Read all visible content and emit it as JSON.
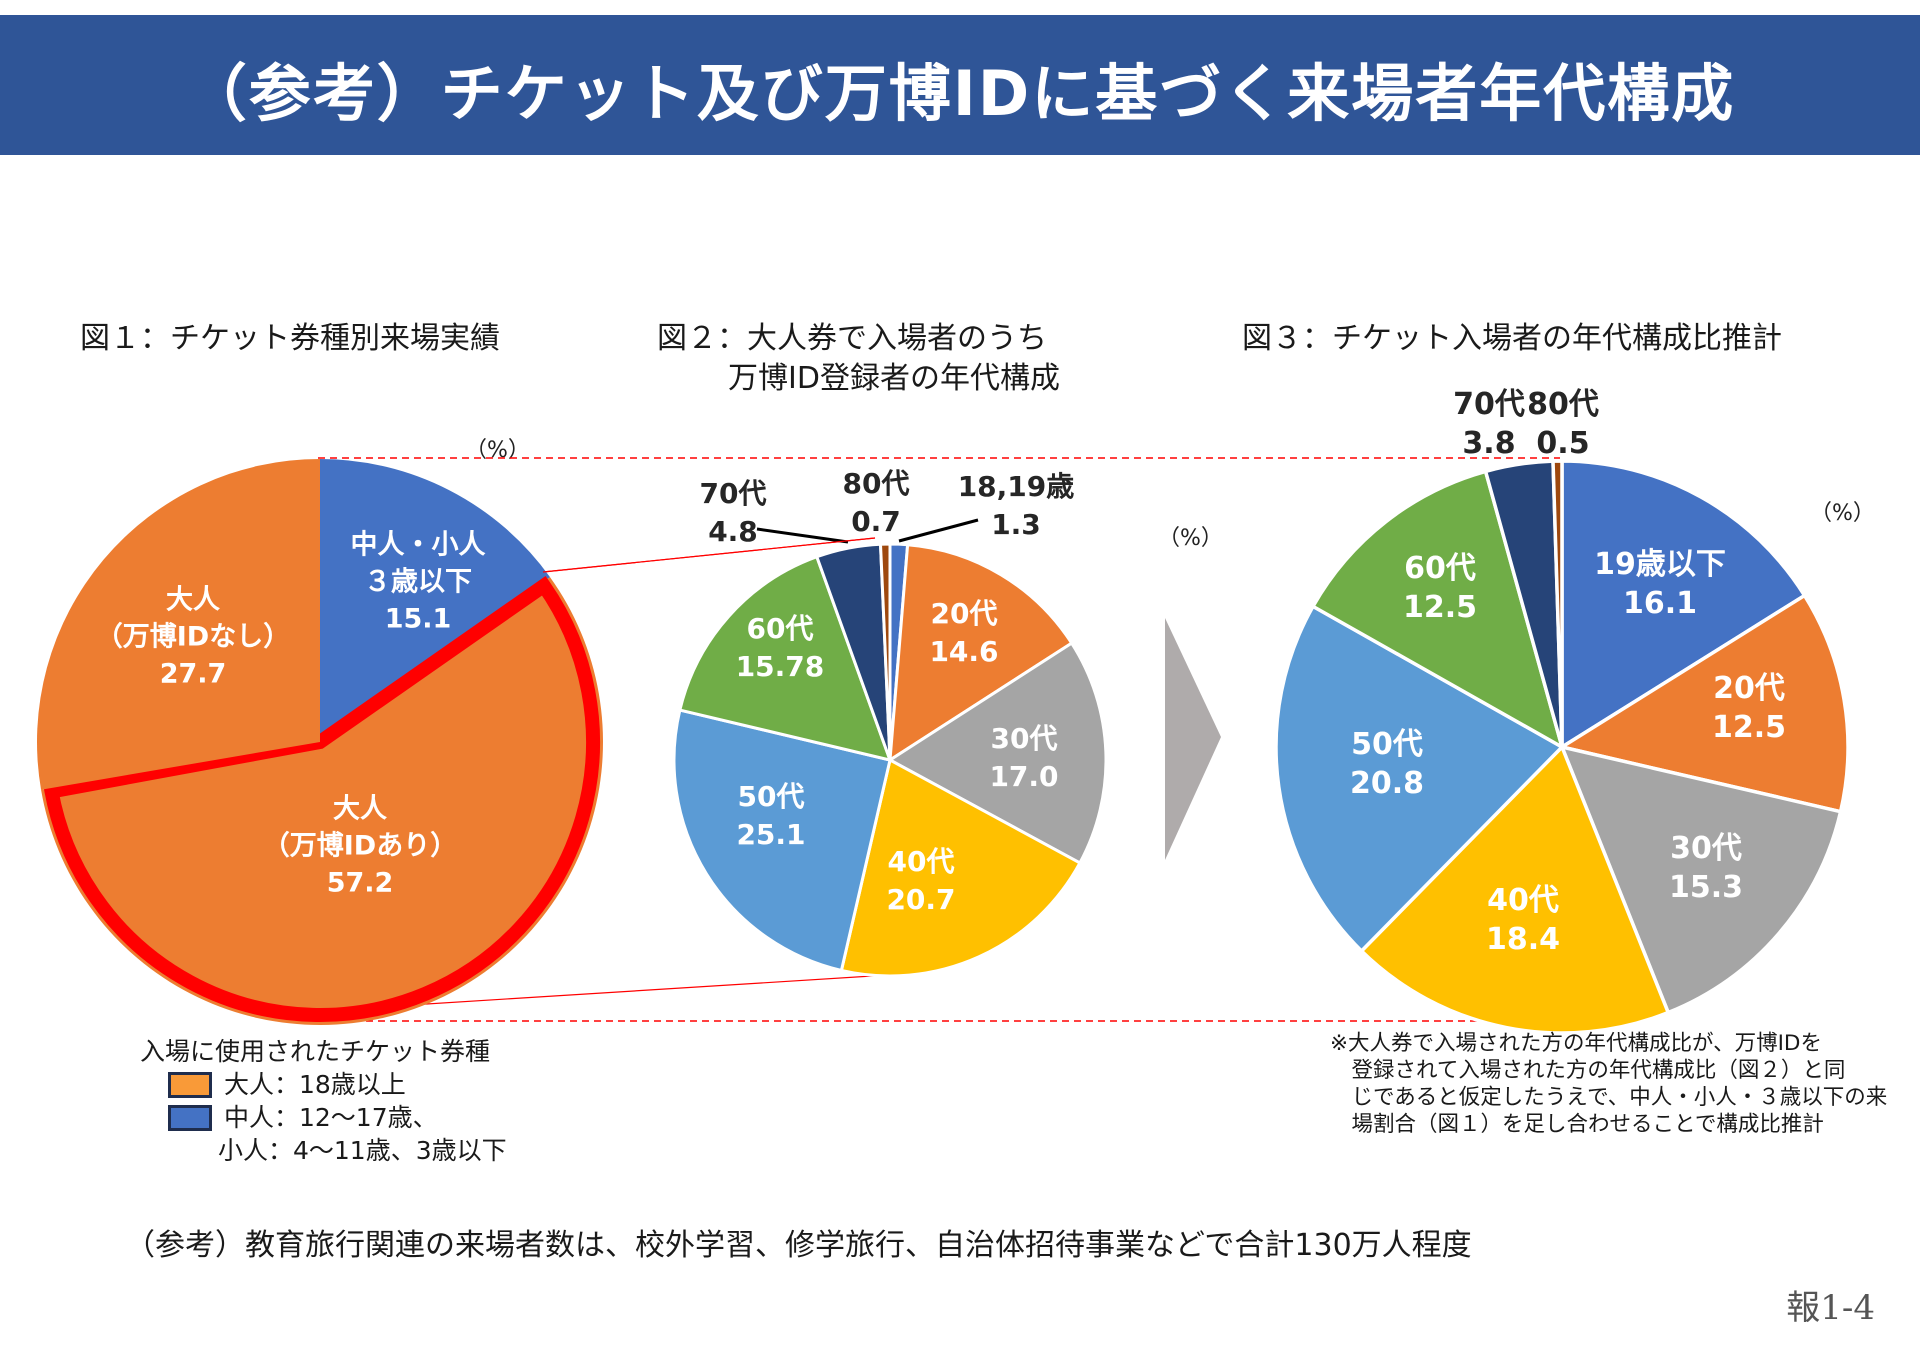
{
  "header": {
    "title": "（参考）チケット及び万博IDに基づく来場者年代構成"
  },
  "figures": {
    "fig1_title": "図１：チケット券種別来場実績",
    "fig2_title_line1": "図２：大人券で入場者のうち",
    "fig2_title_line2": "万博ID登録者の年代構成",
    "fig3_title": "図３：チケット入場者の年代構成比推計",
    "unit": "（%）"
  },
  "colors": {
    "blue": "#4472c4",
    "orange": "#ed7d31",
    "gray": "#a5a5a5",
    "yellow": "#ffc000",
    "light_blue": "#5b9bd5",
    "green": "#70ad47",
    "navy": "#264478",
    "brown": "#9e480e",
    "highlight_red": "#ff0000",
    "header_bg": "#2f5597",
    "arrow_gray": "#afabab"
  },
  "chart_data": [
    {
      "type": "pie",
      "title": "図１：チケット券種別来場実績",
      "unit": "%",
      "start": "12 o'clock, clockwise",
      "slices": [
        {
          "label": "中人・小人\n３歳以下",
          "value": 15.1,
          "color": "#4472c4"
        },
        {
          "label": "大人\n（万博IDあり）",
          "value": 57.2,
          "color": "#ed7d31",
          "highlighted": true
        },
        {
          "label": "大人\n（万博IDなし）",
          "value": 27.7,
          "color": "#ed7d31"
        }
      ]
    },
    {
      "type": "pie",
      "title": "図２：大人券で入場者のうち万博ID登録者の年代構成",
      "unit": "%",
      "start": "12 o'clock, clockwise",
      "slices": [
        {
          "label": "18,19歳",
          "value": 1.3,
          "color": "#4472c4",
          "outside": true
        },
        {
          "label": "20代",
          "value": 14.6,
          "color": "#ed7d31"
        },
        {
          "label": "30代",
          "value": 17.0,
          "color": "#a5a5a5"
        },
        {
          "label": "40代",
          "value": 20.7,
          "color": "#ffc000"
        },
        {
          "label": "50代",
          "value": 25.1,
          "color": "#5b9bd5"
        },
        {
          "label": "60代",
          "value": 15.78,
          "color": "#70ad47"
        },
        {
          "label": "70代",
          "value": 4.8,
          "color": "#264478",
          "outside": true
        },
        {
          "label": "80代",
          "value": 0.7,
          "color": "#9e480e",
          "outside": true
        }
      ]
    },
    {
      "type": "pie",
      "title": "図３：チケット入場者の年代構成比推計",
      "unit": "%",
      "start": "12 o'clock, clockwise",
      "slices": [
        {
          "label": "19歳以下",
          "value": 16.1,
          "color": "#4472c4"
        },
        {
          "label": "20代",
          "value": 12.5,
          "color": "#ed7d31"
        },
        {
          "label": "30代",
          "value": 15.3,
          "color": "#a5a5a5"
        },
        {
          "label": "40代",
          "value": 18.4,
          "color": "#ffc000"
        },
        {
          "label": "50代",
          "value": 20.8,
          "color": "#5b9bd5"
        },
        {
          "label": "60代",
          "value": 12.5,
          "color": "#70ad47"
        },
        {
          "label": "70代",
          "value": 3.8,
          "color": "#264478",
          "outside": true
        },
        {
          "label": "80代",
          "value": 0.5,
          "color": "#9e480e",
          "outside": true
        }
      ]
    }
  ],
  "legend": {
    "title": "入場に使用されたチケット券種",
    "items": [
      {
        "label": "大人：18歳以上",
        "color": "#ed7d31"
      },
      {
        "label": "中人：12～17歳、",
        "label2": "小人：4～11歳、3歳以下",
        "color": "#4472c4"
      }
    ]
  },
  "note": {
    "lines": [
      "※大人券で入場された方の年代構成比が、万博IDを",
      "　登録されて入場された方の年代構成比（図２）と同",
      "　じであると仮定したうえで、中人・小人・３歳以下の来",
      "　場割合（図１）を足し合わせることで構成比推計"
    ]
  },
  "footer": {
    "reference_note": "（参考）教育旅行関連の来場者数は、校外学習、修学旅行、自治体招待事業などで合計130万人程度",
    "page_number": "報1-4"
  }
}
